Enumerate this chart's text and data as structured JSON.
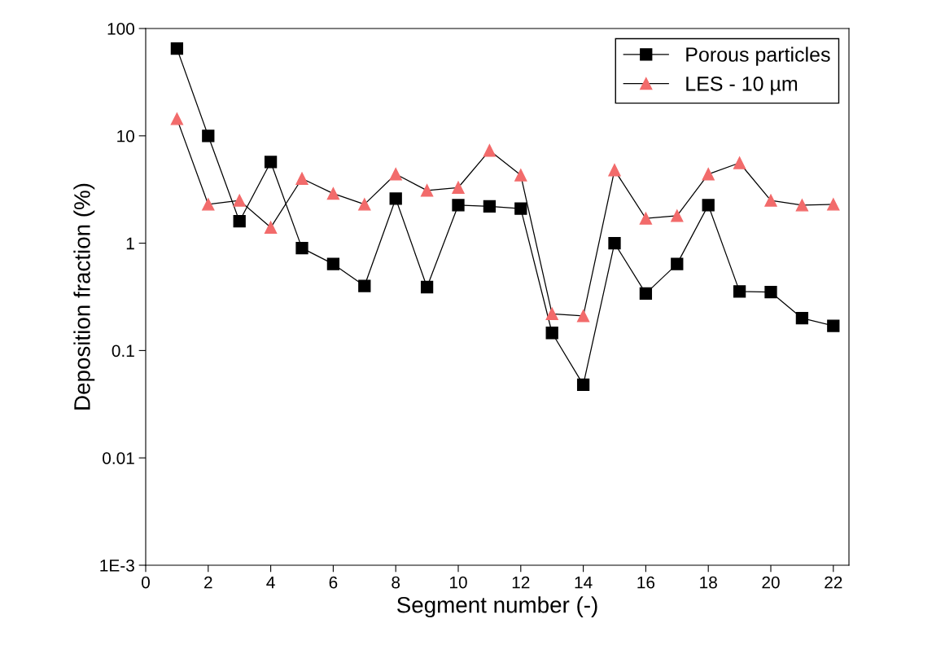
{
  "chart_data": {
    "type": "line",
    "xlabel": "Segment number (-)",
    "ylabel": "Deposition fraction (%)",
    "x": [
      1,
      2,
      3,
      4,
      5,
      6,
      7,
      8,
      9,
      10,
      11,
      12,
      13,
      14,
      15,
      16,
      17,
      18,
      19,
      20,
      21,
      22
    ],
    "series": [
      {
        "name": "Porous particles",
        "color": "#000000",
        "marker": "square",
        "values": [
          65,
          10,
          1.6,
          5.7,
          0.9,
          0.64,
          0.4,
          2.6,
          0.39,
          2.26,
          2.2,
          2.1,
          0.146,
          0.048,
          1.0,
          0.34,
          0.64,
          2.26,
          0.355,
          0.35,
          0.2,
          0.17
        ]
      },
      {
        "name": "LES - 10 µm",
        "color": "#f26b6b",
        "marker": "triangle",
        "values": [
          14.4,
          2.3,
          2.5,
          1.4,
          4.0,
          2.9,
          2.3,
          4.4,
          3.1,
          3.3,
          7.3,
          4.3,
          0.22,
          0.21,
          4.8,
          1.7,
          1.8,
          4.4,
          5.6,
          2.5,
          2.26,
          2.3
        ]
      }
    ],
    "log": "y",
    "xlim": [
      0,
      22.5
    ],
    "xticks": [
      0,
      2,
      4,
      6,
      8,
      10,
      12,
      14,
      16,
      18,
      20,
      22
    ],
    "ylim": [
      0.001,
      100
    ],
    "yticks": [
      {
        "value": 0.001,
        "label": "1E-3"
      },
      {
        "value": 0.01,
        "label": "0.01"
      },
      {
        "value": 0.1,
        "label": "0.1"
      },
      {
        "value": 1,
        "label": "1"
      },
      {
        "value": 10,
        "label": "10"
      },
      {
        "value": 100,
        "label": "100"
      }
    ],
    "grid": false,
    "legend": "top right",
    "line_style": "solid"
  }
}
